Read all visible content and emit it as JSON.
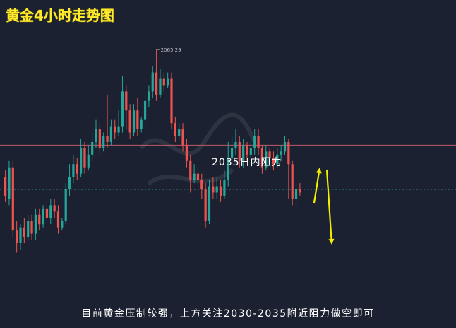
{
  "title": "黄金4小时走势图",
  "caption": "目前黄金压制较强，上方关注2030-2035附近阻力做空即可",
  "resistance_label": "2035日内阻力",
  "colors": {
    "background": "#1b2130",
    "bull": "#26a69a",
    "bear": "#ef5350",
    "resistance_line": "#c05a68",
    "current_line": "#2f8a7a",
    "arrow": "#f5f000",
    "title": "#ffea2a"
  },
  "chart_data": {
    "type": "candlestick",
    "title": "黄金4小时走势图",
    "ylim": [
      1987,
      2072
    ],
    "high_label": "2065.29",
    "resistance_level": 2035,
    "current_level": 2021,
    "candles": [
      [
        2025,
        2019,
        2027,
        2017
      ],
      [
        2018,
        2028,
        2030,
        2016
      ],
      [
        2028,
        2008,
        2030,
        2006
      ],
      [
        2008,
        2004,
        2011,
        2001
      ],
      [
        2004,
        2009,
        2010,
        2002
      ],
      [
        2009,
        2006,
        2012,
        2004
      ],
      [
        2006,
        2011,
        2013,
        2005
      ],
      [
        2011,
        2007,
        2013,
        2005
      ],
      [
        2007,
        2013,
        2015,
        2005
      ],
      [
        2013,
        2010,
        2015,
        2008
      ],
      [
        2010,
        2015,
        2016,
        2009
      ],
      [
        2015,
        2012,
        2017,
        2010
      ],
      [
        2012,
        2016,
        2018,
        2010
      ],
      [
        2016,
        2014,
        2018,
        2012
      ],
      [
        2014,
        2009,
        2016,
        2007
      ],
      [
        2009,
        2011,
        2012,
        2008
      ],
      [
        2011,
        2021,
        2023,
        2010
      ],
      [
        2021,
        2025,
        2029,
        2019
      ],
      [
        2025,
        2029,
        2032,
        2023
      ],
      [
        2029,
        2026,
        2031,
        2024
      ],
      [
        2026,
        2034,
        2037,
        2025
      ],
      [
        2034,
        2028,
        2036,
        2026
      ],
      [
        2028,
        2032,
        2035,
        2027
      ],
      [
        2032,
        2036,
        2039,
        2030
      ],
      [
        2036,
        2040,
        2043,
        2034
      ],
      [
        2040,
        2034,
        2042,
        2032
      ],
      [
        2034,
        2038,
        2039,
        2033
      ],
      [
        2038,
        2036,
        2051,
        2034
      ],
      [
        2036,
        2041,
        2043,
        2035
      ],
      [
        2041,
        2039,
        2043,
        2037
      ],
      [
        2039,
        2041,
        2046,
        2038
      ],
      [
        2041,
        2052,
        2057,
        2039
      ],
      [
        2052,
        2046,
        2054,
        2040
      ],
      [
        2046,
        2039,
        2048,
        2037
      ],
      [
        2039,
        2046,
        2048,
        2038
      ],
      [
        2046,
        2040,
        2050,
        2038
      ],
      [
        2040,
        2043,
        2044,
        2039
      ],
      [
        2043,
        2049,
        2051,
        2041
      ],
      [
        2049,
        2052,
        2054,
        2047
      ],
      [
        2052,
        2058,
        2060,
        2050
      ],
      [
        2058,
        2051,
        2065.29,
        2049
      ],
      [
        2051,
        2056,
        2059,
        2050
      ],
      [
        2056,
        2054,
        2058,
        2052
      ],
      [
        2054,
        2056,
        2058,
        2053
      ],
      [
        2056,
        2042,
        2058,
        2040
      ],
      [
        2042,
        2038,
        2044,
        2036
      ],
      [
        2038,
        2040,
        2042,
        2037
      ],
      [
        2040,
        2035,
        2042,
        2033
      ],
      [
        2035,
        2030,
        2037,
        2028
      ],
      [
        2030,
        2024,
        2032,
        2020
      ],
      [
        2024,
        2026,
        2029,
        2023
      ],
      [
        2026,
        2024,
        2028,
        2022
      ],
      [
        2024,
        2021,
        2026,
        2018
      ],
      [
        2021,
        2011,
        2023,
        2009
      ],
      [
        2011,
        2022,
        2024,
        2010
      ],
      [
        2022,
        2020,
        2025,
        2018
      ],
      [
        2020,
        2022,
        2025,
        2018
      ],
      [
        2022,
        2019,
        2024,
        2017
      ],
      [
        2019,
        2024,
        2027,
        2018
      ],
      [
        2024,
        2031,
        2036,
        2022
      ],
      [
        2031,
        2034,
        2038,
        2029
      ],
      [
        2034,
        2036,
        2040,
        2032
      ],
      [
        2036,
        2030,
        2038,
        2028
      ],
      [
        2030,
        2035,
        2037,
        2028
      ],
      [
        2035,
        2032,
        2036,
        2030
      ],
      [
        2032,
        2034,
        2036,
        2031
      ],
      [
        2034,
        2038,
        2040,
        2032
      ],
      [
        2038,
        2034,
        2040,
        2032
      ],
      [
        2034,
        2028,
        2035,
        2026
      ],
      [
        2028,
        2033,
        2035,
        2027
      ],
      [
        2033,
        2031,
        2034,
        2029
      ],
      [
        2031,
        2029,
        2033,
        2027
      ],
      [
        2029,
        2032,
        2034,
        2028
      ],
      [
        2032,
        2033,
        2035,
        2030
      ],
      [
        2033,
        2036,
        2038,
        2032
      ],
      [
        2036,
        2029,
        2037,
        2018
      ],
      [
        2029,
        2018,
        2030,
        2016
      ],
      [
        2018,
        2021,
        2023,
        2016
      ],
      [
        2021,
        2020,
        2023,
        2019
      ]
    ],
    "annotations": [
      "2035日内阻力",
      "2065.29"
    ]
  }
}
